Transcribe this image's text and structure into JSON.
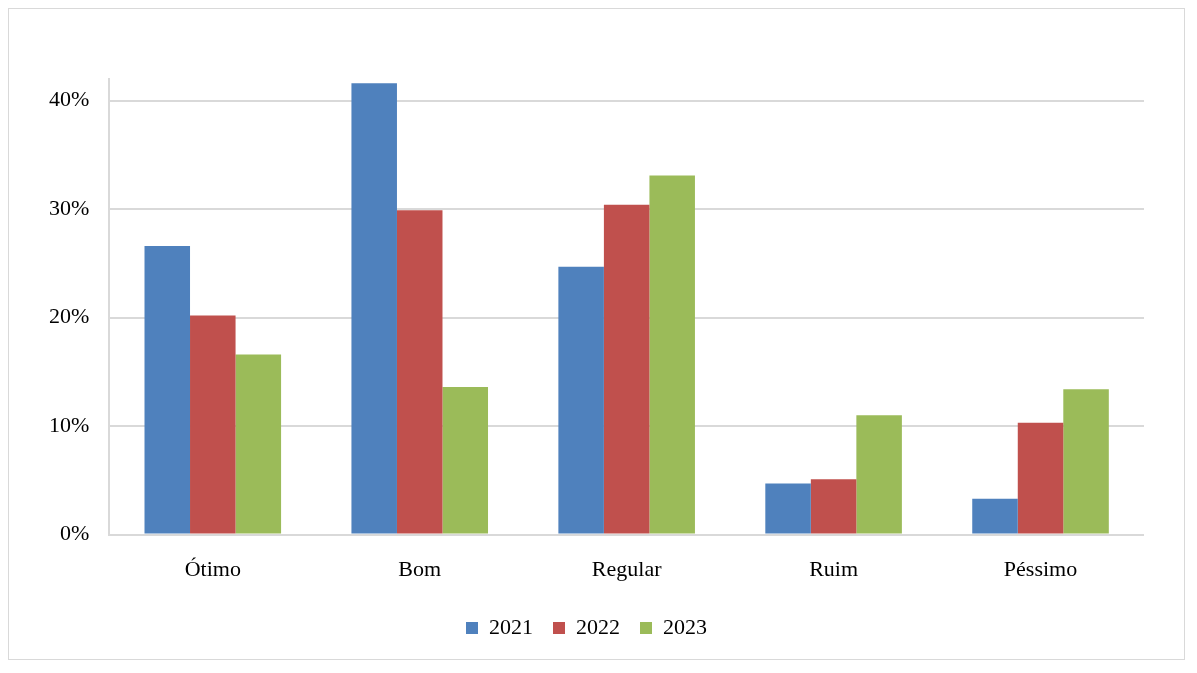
{
  "chart_data": {
    "type": "bar",
    "categories": [
      "Ótimo",
      "Bom",
      "Regular",
      "Ruim",
      "Péssimo"
    ],
    "series": [
      {
        "name": "2021",
        "color": "#4f81bd",
        "values": [
          26.6,
          41.6,
          24.7,
          4.7,
          3.3
        ]
      },
      {
        "name": "2022",
        "color": "#c0504d",
        "values": [
          20.2,
          29.9,
          30.4,
          5.1,
          10.3
        ]
      },
      {
        "name": "2023",
        "color": "#9bbb59",
        "values": [
          16.6,
          13.6,
          33.1,
          11.0,
          13.4
        ]
      }
    ],
    "ylim": [
      0,
      42
    ],
    "yticks": [
      {
        "value": 0,
        "label": "0%"
      },
      {
        "value": 10,
        "label": "10%"
      },
      {
        "value": 20,
        "label": "20%"
      },
      {
        "value": 30,
        "label": "30%"
      },
      {
        "value": 40,
        "label": "40%"
      }
    ],
    "grid": "y",
    "legend": "bottom"
  }
}
